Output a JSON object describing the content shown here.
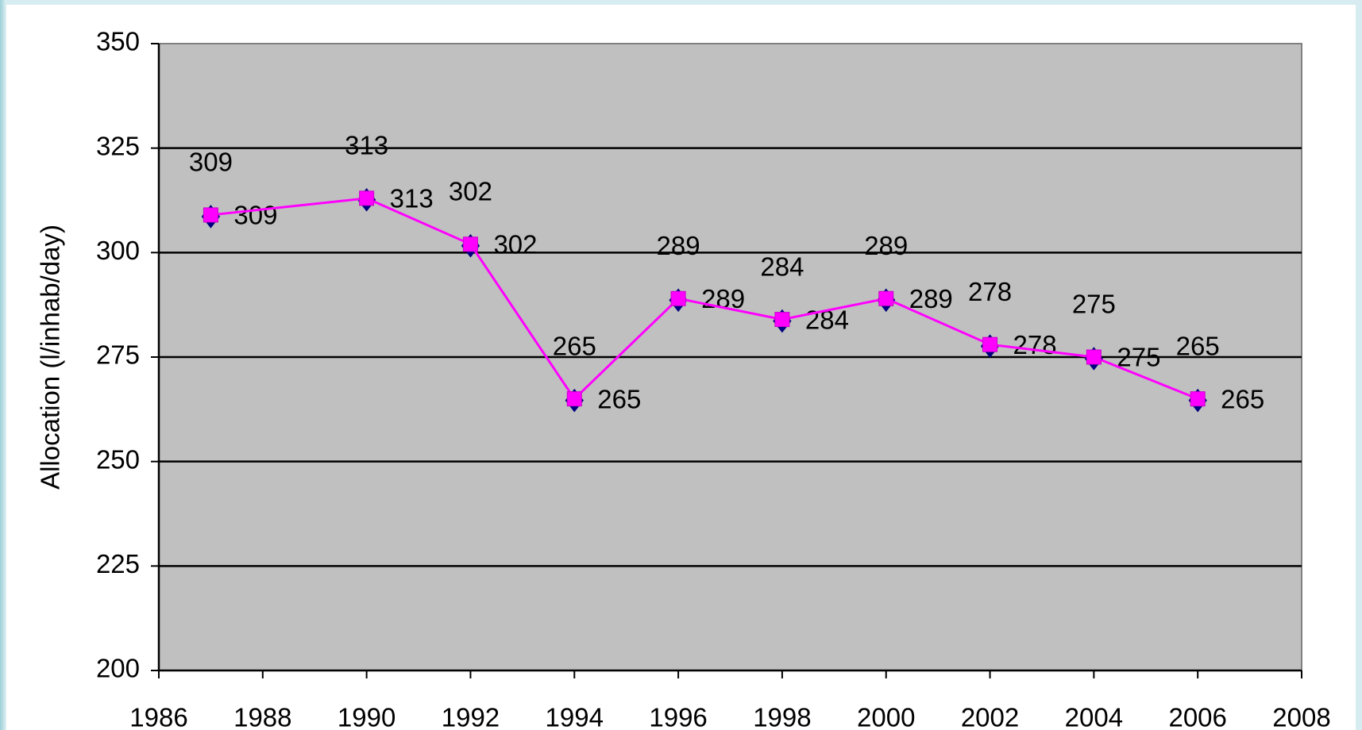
{
  "chart_data": {
    "type": "line",
    "y_label": "Allocation (l/inhab/day)",
    "x": [
      1987,
      1990,
      1992,
      1994,
      1996,
      1998,
      2000,
      2002,
      2004,
      2006
    ],
    "series": [
      {
        "color": "#000080",
        "marker": "diamond",
        "line": false,
        "label_position": "right",
        "values": [
          309,
          313,
          302,
          265,
          289,
          284,
          289,
          278,
          275,
          265
        ]
      },
      {
        "color": "#ff00ff",
        "marker": "square",
        "line": true,
        "label_position": "above",
        "values": [
          309,
          313,
          302,
          265,
          289,
          284,
          289,
          278,
          275,
          265
        ]
      }
    ],
    "xlim": [
      1986,
      2008
    ],
    "xticks": [
      1986,
      1988,
      1990,
      1992,
      1994,
      1996,
      1998,
      2000,
      2002,
      2004,
      2006,
      2008
    ],
    "ylim": [
      200,
      350
    ],
    "yticks": [
      200,
      225,
      250,
      275,
      300,
      325,
      350
    ],
    "grid": true,
    "plot_background": "#c0c0c0"
  }
}
